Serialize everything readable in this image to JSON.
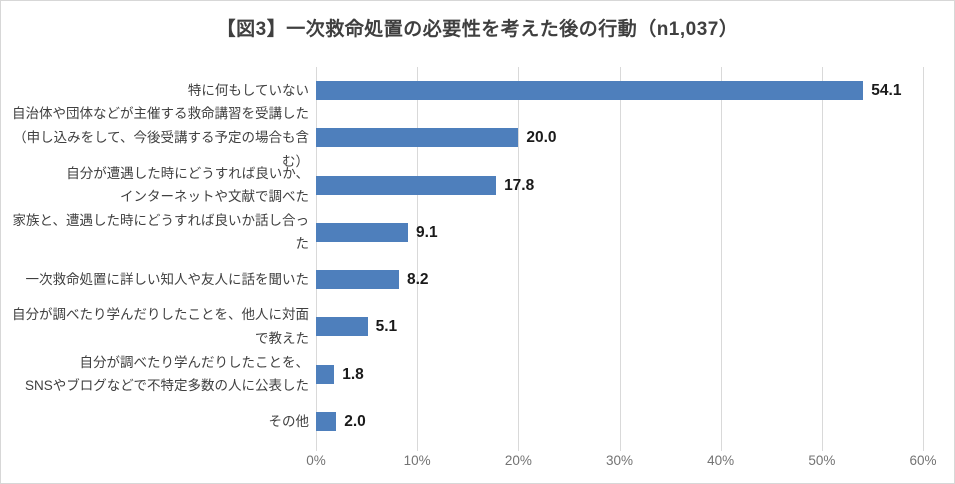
{
  "title": "【図3】一次救命処置の必要性を考えた後の行動（n1,037）",
  "chart_data": {
    "type": "bar",
    "orientation": "horizontal",
    "title": "【図3】一次救命処置の必要性を考えた後の行動（n1,037）",
    "categories": [
      "特に何もしていない",
      "自治体や団体などが主催する救命講習を受講した\n（申し込みをして、今後受講する予定の場合も含む）",
      "自分が遭遇した時にどうすれば良いか、\nインターネットや文献で調べた",
      "家族と、遭遇した時にどうすれば良いか話し合った",
      "一次救命処置に詳しい知人や友人に話を聞いた",
      "自分が調べたり学んだりしたことを、他人に対面で教えた",
      "自分が調べたり学んだりしたことを、\nSNSやブログなどで不特定多数の人に公表した",
      "その他"
    ],
    "values": [
      54.1,
      20.0,
      17.8,
      9.1,
      8.2,
      5.1,
      1.8,
      2.0
    ],
    "value_labels": [
      "54.1",
      "20.0",
      "17.8",
      "9.1",
      "8.2",
      "5.1",
      "1.8",
      "2.0"
    ],
    "xlim": [
      0,
      60
    ],
    "x_ticks": [
      "0%",
      "10%",
      "20%",
      "30%",
      "40%",
      "50%",
      "60%"
    ],
    "grid": true,
    "legend": "none",
    "bar_color": "#4e7fbc",
    "gridline_color": "#d9d9d9"
  }
}
